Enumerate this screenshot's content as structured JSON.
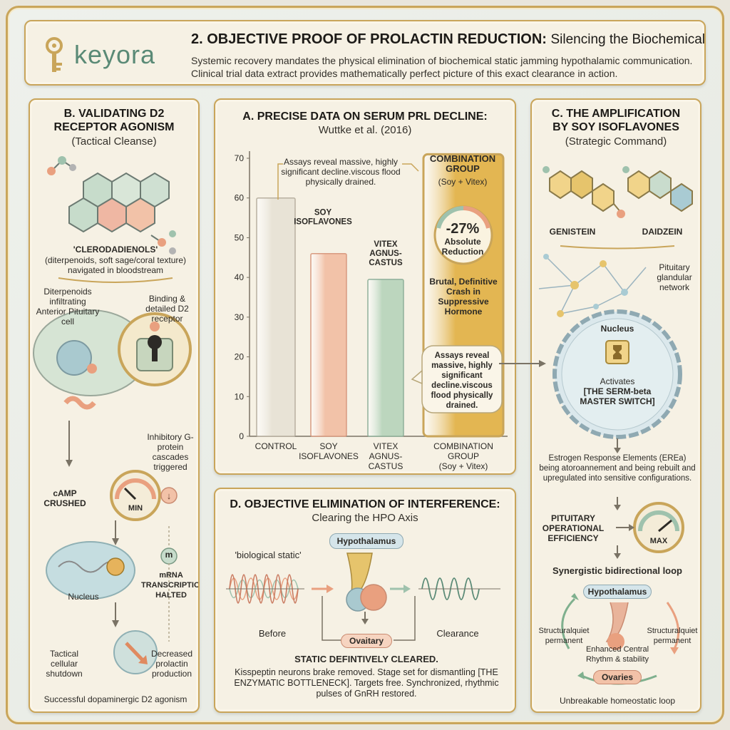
{
  "header": {
    "logo_text": "keyora",
    "title": "2. OBJECTIVE PROOF OF PROLACTIN REDUCTION:",
    "subtitle": "Silencing the Biochemical Noise",
    "description": "Systemic recovery mandates the physical elimination of biochemical static jamming hypothalamic communication. Clinical trial data extract provides mathematically perfect picture of this exact clearance in action."
  },
  "panel_b": {
    "title_line1": "B. VALIDATING D2",
    "title_line2": "RECEPTOR AGONISM",
    "subtitle": "(Tactical Cleanse)",
    "molecule_name": "'CLERODADIENOLS'",
    "molecule_desc_line1": "(diterpenoids, soft sage/coral texture)",
    "molecule_desc_line2": "navigated in bloodstream",
    "infiltrating": "Diterpenoids infiltrating Anterior Pituitary cell",
    "binding": "Binding & detailed D2 receptor",
    "inhibitory": "Inhibitory G-protein cascades triggered",
    "camp": "cAMP CRUSHED",
    "min": "MIN",
    "m_letter": "m",
    "mrna": "mRNA TRANSCRIPTION HALTED",
    "nucleus": "Nucleus",
    "tactical": "Tactical cellular shutdown",
    "decreased": "Decreased prolactin production",
    "footer": "Successful dopaminergic D2 agonism"
  },
  "panel_a": {
    "title": "A. PRECISE DATA ON SERUM PRL DECLINE:",
    "citation": "Wuttke et al. (2016)",
    "callout_top": "Assays reveal massive, highly significant decline.viscous flood physically drained.",
    "combo_title": "COMBINATION GROUP",
    "combo_sub": "(Soy + Vitex)",
    "gauge_value": "-27%",
    "gauge_label": "Absolute Reduction",
    "combo_desc": "Brutal, Definitive Crash in Suppressive Hormone",
    "callout_bottom": "Assays reveal massive, highly significant decline.viscous flood physically drained."
  },
  "chart_data": {
    "type": "bar",
    "categories": [
      "CONTROL",
      "SOY ISOFLAVONES",
      "VITEX AGNUS-CASTUS",
      "COMBINATION GROUP (Soy + Vitex)"
    ],
    "values": [
      60,
      46,
      39.5,
      71
    ],
    "ylim": [
      0,
      70
    ],
    "yticks": [
      0,
      10,
      20,
      30,
      40,
      50,
      60,
      70
    ],
    "inner_labels": [
      "",
      "SOY ISOFLAVONES",
      "VITEX AGNUS-CASTUS",
      ""
    ],
    "colors": [
      "#e8e3d6",
      "#f2c2a8",
      "#bcd6be",
      "#e3b652"
    ]
  },
  "panel_c": {
    "title_line1": "C. THE AMPLIFICATION",
    "title_line2": "BY SOY ISOFLAVONES",
    "subtitle": "(Strategic Command)",
    "genistein": "GENISTEIN",
    "daidzein": "DAIDZEIN",
    "network": "Pituitary glandular network",
    "nucleus": "Nucleus",
    "activates": "Activates",
    "switch": "[THE SERM-beta MASTER SWITCH]",
    "ere": "Estrogen Response Elements (EREa) being atoroannement and being rebuilt and upregulated into sensitive configurations.",
    "efficiency": "PITUITARY OPERATIONAL EFFICIENCY",
    "max": "MAX",
    "loop_title": "Synergistic bidirectional loop",
    "hypothalamus": "Hypothalamus",
    "structural_left": "Structuralquiet permanent",
    "structural_right": "Structuralquiet permanent",
    "enhanced": "Enhanced Central Rhythm & stability",
    "ovaries": "Ovaries",
    "footer": "Unbreakable homeostatic loop"
  },
  "panel_d": {
    "title": "D. OBJECTIVE ELIMINATION OF INTERFERENCE:",
    "subtitle": "Clearing the HPO Axis",
    "static_label": "'biological static'",
    "hypothalamus": "Hypothalamus",
    "before": "Before",
    "ovaitary": "Ovaitary",
    "clearance": "Clearance",
    "cleared_title": "STATIC DEFINTIVELY CLEARED.",
    "cleared_desc": "Kisspeptin neurons brake removed. Stage set for dismantling [THE ENZYMATIC BOTTLENECK]. Targets free. Synchronized, rhythmic pulses of GnRH restored."
  },
  "colors": {
    "gold": "#c9a55a",
    "parchment": "#f6f1e4",
    "sage": "#9fc2ad",
    "coral": "#e9a07f",
    "teal": "#5a8a76"
  }
}
